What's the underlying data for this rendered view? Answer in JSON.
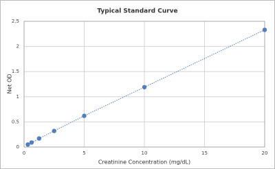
{
  "chart_data": {
    "type": "scatter",
    "title": "Typical Standard Curve",
    "x_label": "Creatinine Concentration (mg/dL)",
    "y_label": "Net OD",
    "series": [
      {
        "color": "#4f7fbc",
        "x": [
          0.3125,
          0.625,
          1.25,
          2.5,
          5,
          10,
          20
        ],
        "values": [
          0.05,
          0.09,
          0.17,
          0.32,
          0.62,
          1.19,
          2.33
        ]
      }
    ],
    "line_style": "dotted",
    "xlim": [
      0,
      20
    ],
    "xticks": [
      0,
      5,
      10,
      15,
      20
    ],
    "ylim": [
      0,
      2.5
    ],
    "yticks": [
      0,
      0.5,
      1,
      1.5,
      2,
      2.5
    ],
    "grid": true
  }
}
